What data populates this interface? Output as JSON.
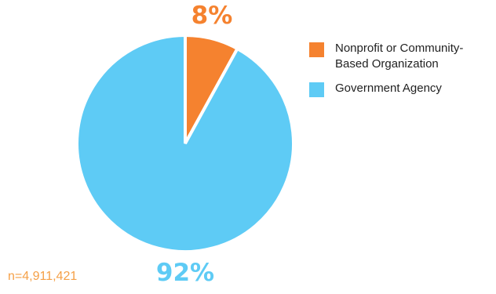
{
  "chart_data": {
    "type": "pie",
    "slices": [
      {
        "label": "Nonprofit or Community-Based Organization",
        "value": 8,
        "display": "8%",
        "color": "#f5822f"
      },
      {
        "label": "Government Agency",
        "value": 92,
        "display": "92%",
        "color": "#5ecbf5"
      }
    ],
    "legend_position": "right",
    "footnote": "n=4,911,421",
    "footnote_color": "#f5a047"
  }
}
